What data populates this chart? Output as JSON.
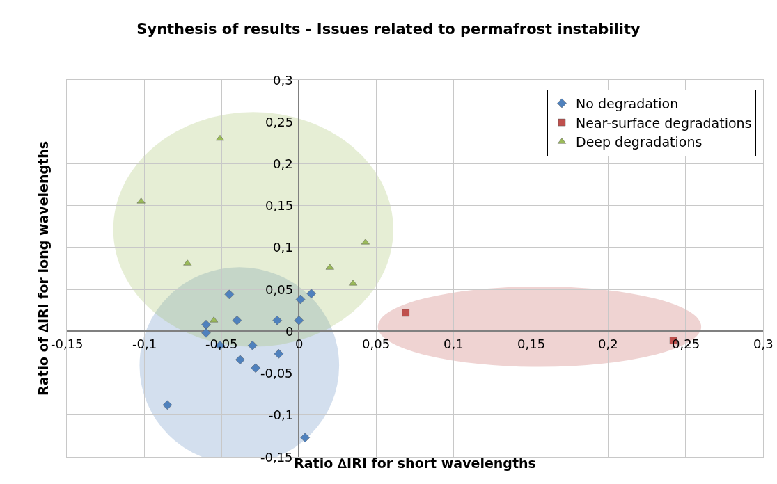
{
  "chart_data": {
    "type": "scatter",
    "title": "Synthesis of results - Issues related to permafrost instability",
    "xlabel": "Ratio ∆IRI for short wavelengths",
    "ylabel": "Ratio of ∆IRI for long wavelengths",
    "xlim": [
      -0.15,
      0.3
    ],
    "ylim": [
      -0.15,
      0.3
    ],
    "xticks": [
      {
        "value": -0.15,
        "label": "-0,15"
      },
      {
        "value": -0.1,
        "label": "-0,1"
      },
      {
        "value": -0.05,
        "label": "-0,05"
      },
      0,
      {
        "value": 0.05,
        "label": "0,05"
      },
      {
        "value": 0.1,
        "label": "0,1"
      },
      {
        "value": 0.15,
        "label": "0,15"
      },
      {
        "value": 0.2,
        "label": "0,2"
      },
      {
        "value": 0.25,
        "label": "0,25"
      },
      {
        "value": 0.3,
        "label": "0,3"
      }
    ],
    "yticks": [
      {
        "value": -0.15,
        "label": "-0,15"
      },
      {
        "value": -0.1,
        "label": "-0,1"
      },
      {
        "value": -0.05,
        "label": "-0,05"
      },
      0,
      {
        "value": 0.05,
        "label": "0,05"
      },
      {
        "value": 0.1,
        "label": "0,1"
      },
      {
        "value": 0.15,
        "label": "0,15"
      },
      {
        "value": 0.2,
        "label": "0,2"
      },
      {
        "value": 0.25,
        "label": "0,25"
      },
      {
        "value": 0.3,
        "label": "0,3"
      }
    ],
    "grid": true,
    "legend": "top right",
    "series": [
      {
        "name": "No degradation",
        "color": "#4f81bd",
        "marker": "diamond",
        "x": [
          -0.045,
          0.001,
          0.008,
          -0.04,
          -0.014,
          0.0,
          -0.06,
          -0.06,
          -0.051,
          -0.03,
          -0.013,
          -0.038,
          -0.028,
          -0.085,
          0.004
        ],
        "values": [
          0.044,
          0.038,
          0.045,
          0.013,
          0.013,
          0.013,
          0.008,
          -0.002,
          -0.017,
          -0.017,
          -0.027,
          -0.034,
          -0.044,
          -0.088,
          -0.127
        ]
      },
      {
        "name": "Near-surface degradations",
        "color": "#c0504d",
        "marker": "square",
        "x": [
          0.069,
          0.242
        ],
        "values": [
          0.022,
          -0.011
        ]
      },
      {
        "name": "Deep degradations",
        "color": "#9bbb59",
        "marker": "triangle",
        "x": [
          -0.102,
          -0.051,
          -0.072,
          -0.055,
          0.02,
          0.035,
          0.043
        ],
        "values": [
          0.155,
          0.23,
          0.081,
          0.013,
          0.076,
          0.057,
          0.106
        ]
      }
    ]
  }
}
